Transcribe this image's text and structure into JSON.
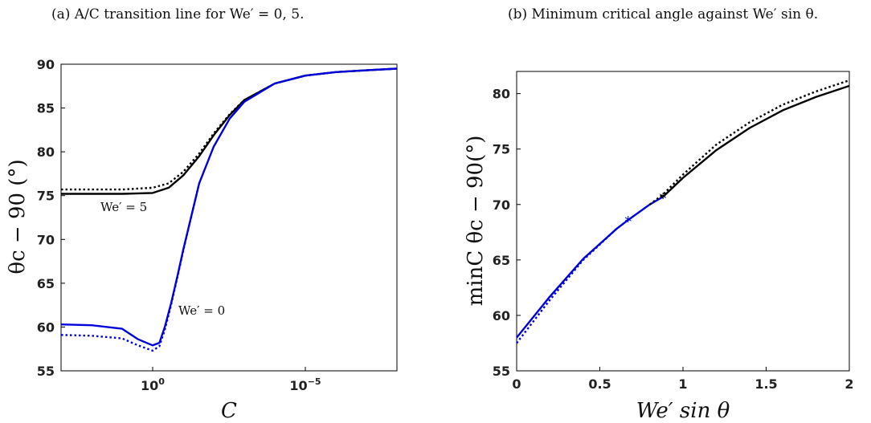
{
  "captions": {
    "a": "(a) A/C transition line for  We′ = 0, 5.",
    "b": "(b) Minimum critical angle against  We′ sin θ."
  },
  "colors": {
    "black": "#000000",
    "blue": "#0000dd"
  },
  "chart_data": [
    {
      "type": "line",
      "title": "(a) A/C transition line for  We′ = 0, 5.",
      "xlabel": "C",
      "ylabel": "θc − 90 (°)",
      "xscale": "log-reversed",
      "xlim": [
        1000,
        1e-08
      ],
      "ylim": [
        55,
        90
      ],
      "xticks": [
        {
          "value": 1,
          "label": "10^0"
        },
        {
          "value": 1e-05,
          "label": "10^-5"
        }
      ],
      "yticks": [
        55,
        60,
        65,
        70,
        75,
        80,
        85,
        90
      ],
      "annotations": [
        {
          "text": "We′ = 5",
          "x": 10,
          "y": 74.3
        },
        {
          "text": "We′ = 0",
          "x": 0.03,
          "y": 59.0
        }
      ],
      "series": [
        {
          "name": "We′ = 5",
          "color": "black",
          "style": "solid",
          "x": [
            1000,
            100,
            10,
            1,
            0.3,
            0.1,
            0.03,
            0.01,
            0.003,
            0.001,
            0.0001,
            1e-05,
            1e-06,
            1e-07,
            1e-08
          ],
          "y": [
            75.2,
            75.2,
            75.2,
            75.3,
            75.9,
            77.3,
            79.5,
            81.9,
            84.2,
            85.9,
            87.8,
            88.7,
            89.1,
            89.3,
            89.5
          ]
        },
        {
          "name": "We′ = 5",
          "color": "black",
          "style": "dotted",
          "x": [
            1000,
            100,
            10,
            1,
            0.3,
            0.1,
            0.03,
            0.01,
            0.003,
            0.001,
            0.0001,
            1e-05,
            1e-06,
            1e-07,
            1e-08
          ],
          "y": [
            75.7,
            75.7,
            75.7,
            75.9,
            76.4,
            77.7,
            79.8,
            82.1,
            84.3,
            85.9,
            87.8,
            88.7,
            89.1,
            89.3,
            89.5
          ]
        },
        {
          "name": "We′ = 0",
          "color": "blue",
          "style": "solid",
          "x": [
            1000,
            100,
            10,
            3,
            1,
            0.6,
            0.4,
            0.25,
            0.15,
            0.1,
            0.06,
            0.03,
            0.01,
            0.003,
            0.001,
            0.0001,
            1e-05,
            1e-06,
            1e-07,
            1e-08
          ],
          "y": [
            60.3,
            60.2,
            59.8,
            58.6,
            57.9,
            58.2,
            60.0,
            62.7,
            66.0,
            68.8,
            72.0,
            76.4,
            80.6,
            83.8,
            85.7,
            87.8,
            88.7,
            89.1,
            89.3,
            89.5
          ]
        },
        {
          "name": "We′ = 0",
          "color": "blue",
          "style": "dotted",
          "x": [
            1000,
            100,
            10,
            3,
            1,
            0.6,
            0.4,
            0.25,
            0.15,
            0.1,
            0.06,
            0.03
          ],
          "y": [
            59.1,
            59.0,
            58.7,
            57.9,
            57.3,
            57.8,
            59.7,
            62.5,
            65.9,
            68.7,
            72.0,
            76.4
          ]
        }
      ]
    },
    {
      "type": "line",
      "title": "(b) Minimum critical angle against  We′ sin θ.",
      "xlabel": "We′ sin θ",
      "ylabel": "minC θc − 90(°)",
      "xlim": [
        0,
        2
      ],
      "ylim": [
        55,
        82
      ],
      "xticks": [
        0,
        0.5,
        1,
        1.5,
        2
      ],
      "yticks": [
        55,
        60,
        65,
        70,
        75,
        80
      ],
      "markers": [
        {
          "x": 0.67,
          "y": 68.6,
          "color": "blue",
          "symbol": "*"
        },
        {
          "x": 0.88,
          "y": 70.7,
          "color": "black",
          "symbol": "*"
        }
      ],
      "series": [
        {
          "color": "blue",
          "style": "solid",
          "x": [
            0,
            0.2,
            0.4,
            0.6,
            0.67,
            0.8,
            0.88
          ],
          "y": [
            58.0,
            61.7,
            65.1,
            67.8,
            68.6,
            70.0,
            70.7
          ]
        },
        {
          "color": "blue",
          "style": "dotted",
          "x": [
            0,
            0.2,
            0.4,
            0.6,
            0.67
          ],
          "y": [
            57.5,
            61.4,
            65.0,
            67.8,
            68.6
          ]
        },
        {
          "color": "black",
          "style": "solid",
          "x": [
            0.88,
            1.0,
            1.2,
            1.4,
            1.6,
            1.8,
            2.0
          ],
          "y": [
            70.7,
            72.4,
            74.9,
            76.9,
            78.5,
            79.7,
            80.7
          ]
        },
        {
          "color": "black",
          "style": "dotted",
          "x": [
            0.8,
            0.88,
            1.0,
            1.2,
            1.4,
            1.6,
            1.8,
            2.0
          ],
          "y": [
            70.0,
            70.9,
            72.7,
            75.4,
            77.4,
            79.0,
            80.2,
            81.2
          ]
        }
      ]
    }
  ]
}
